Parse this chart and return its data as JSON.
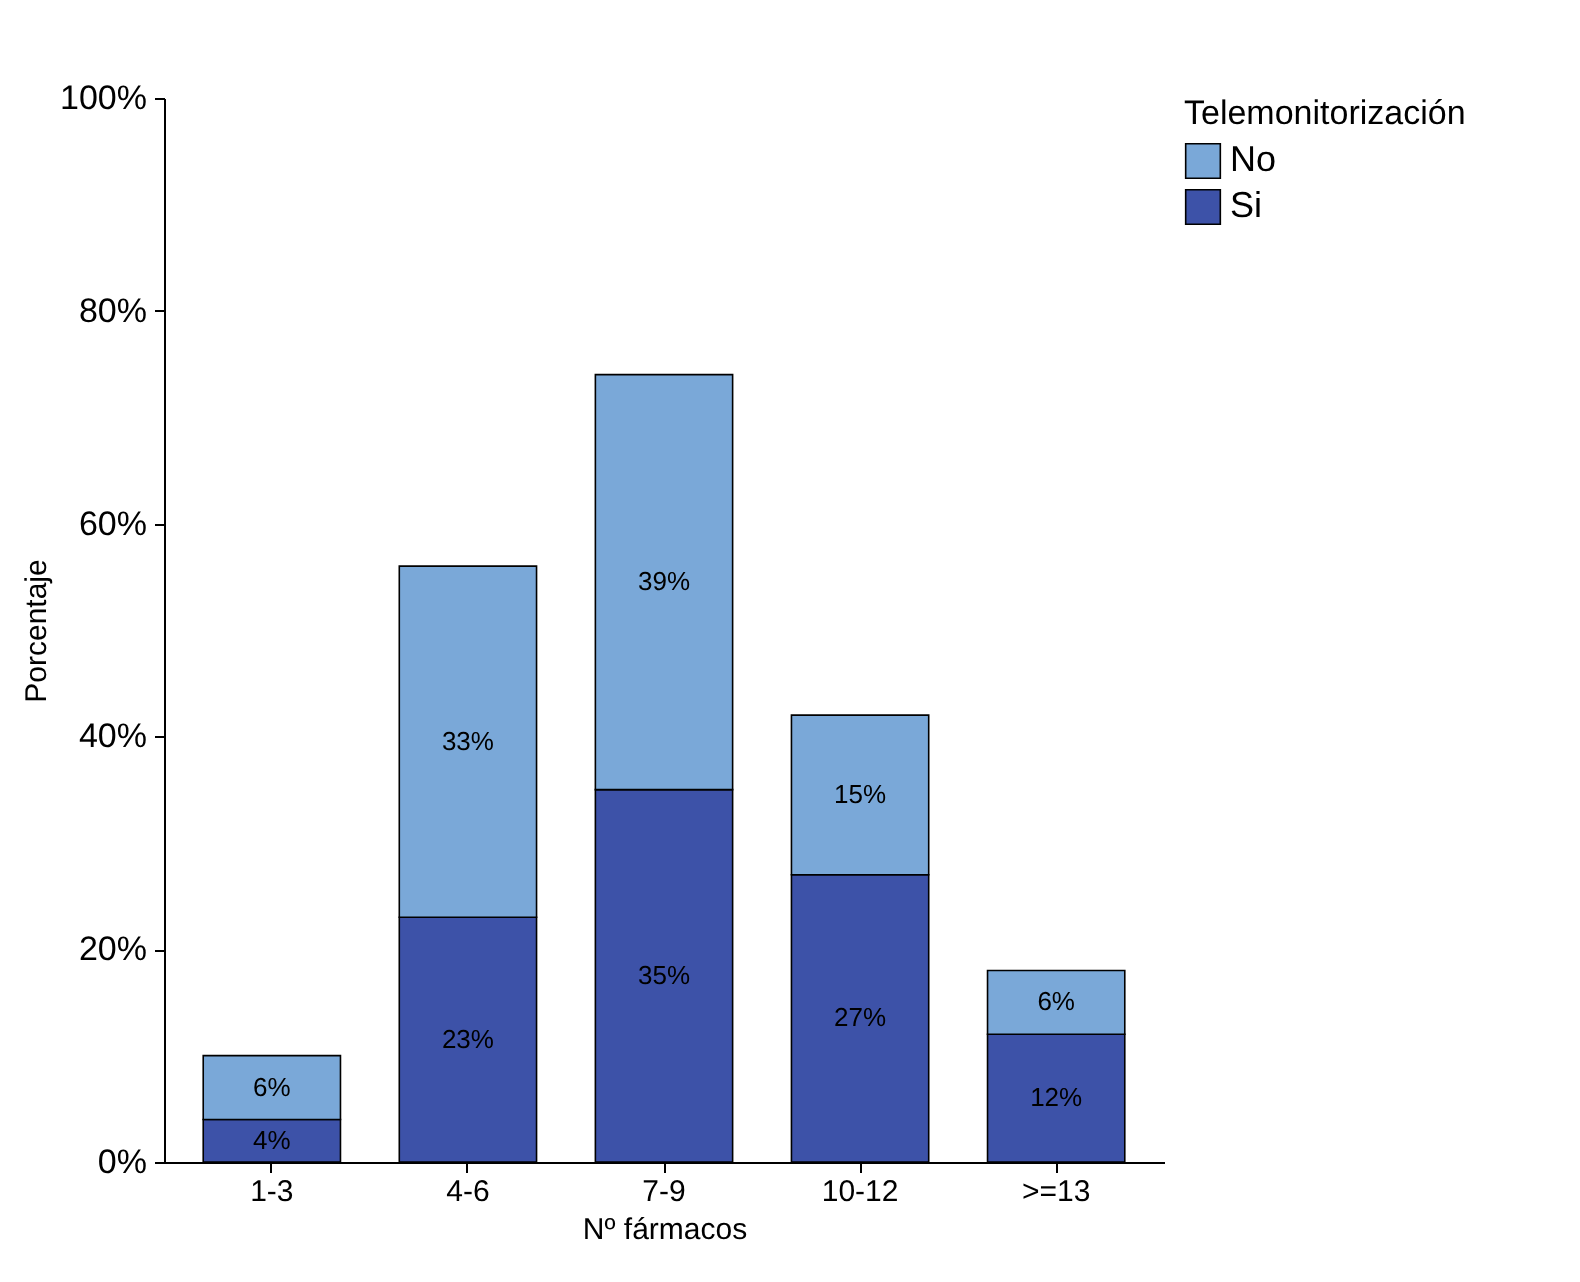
{
  "chart_data": {
    "type": "bar",
    "stacked": true,
    "xlabel": "Nº fármacos",
    "ylabel": "Porcentaje",
    "legend_title": "Telemonitorización",
    "legend": "top right",
    "grid": false,
    "categories": [
      "1-3",
      "4-6",
      "7-9",
      "10-12",
      ">=13"
    ],
    "series": [
      {
        "name": "Si",
        "color": "#3d52a8",
        "values": [
          4,
          23,
          35,
          27,
          12
        ],
        "value_labels": [
          "4%",
          "23%",
          "35%",
          "27%",
          "12%"
        ]
      },
      {
        "name": "No",
        "color": "#7aa8d8",
        "values": [
          6,
          33,
          39,
          15,
          6
        ],
        "value_labels": [
          "6%",
          "33%",
          "39%",
          "15%",
          "6%"
        ]
      }
    ],
    "ylim": [
      0,
      100
    ],
    "yticks": [
      {
        "value": 0,
        "label": "0%"
      },
      {
        "value": 20,
        "label": "20%"
      },
      {
        "value": 40,
        "label": "40%"
      },
      {
        "value": 60,
        "label": "60%"
      },
      {
        "value": 80,
        "label": "80%"
      },
      {
        "value": 100,
        "label": "100%"
      }
    ]
  }
}
